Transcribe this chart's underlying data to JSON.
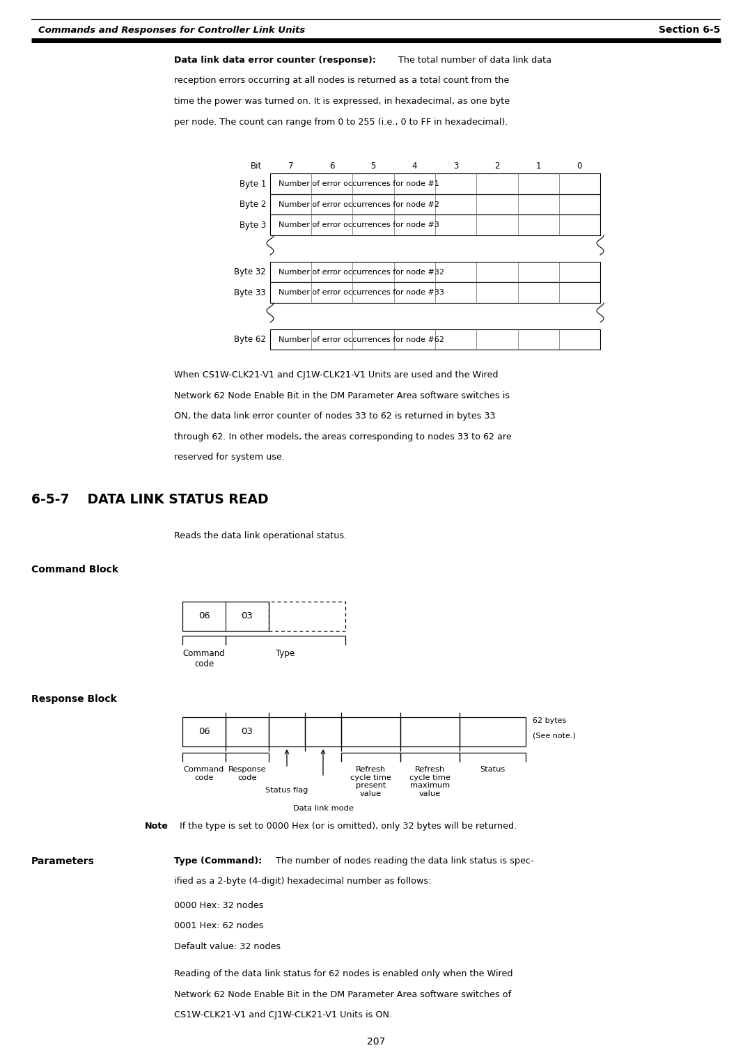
{
  "bg_color": "#ffffff",
  "page_number": "207",
  "header_italic": "Commands and Responses for Controller Link Units",
  "header_right": "Section 6-5",
  "section_title": "6-5-7    DATA LINK STATUS READ",
  "section_intro": "Reads the data link operational status.",
  "command_block_label": "Command Block",
  "response_block_label": "Response Block",
  "parameters_label": "Parameters",
  "note_bold": "Note",
  "note_rest": "  If the type is set to 0000 Hex (or is omitted), only 32 bytes will be returned.",
  "param_text_bold": "Type (Command):",
  "param_text_rest": " The number of nodes reading the data link status is spec-",
  "param_text_rest2": "ified as a 2-byte (4-digit) hexadecimal number as follows:",
  "param_items": [
    "0000 Hex: 32 nodes",
    "0001 Hex: 62 nodes",
    "Default value: 32 nodes"
  ],
  "param_note": "Reading of the data link status for 62 nodes is enabled only when the Wired\nNetwork 62 Node Enable Bit in the DM Parameter Area software switches of\nCS1W-CLK21-V1 and CJ1W-CLK21-V1 Units is ON.",
  "error_counter_bold": "Data link data error counter (response):",
  "error_counter_rest": " The total number of data link data",
  "error_counter_lines": [
    "reception errors occurring at all nodes is returned as a total count from the",
    "time the power was turned on. It is expressed, in hexadecimal, as one byte",
    "per node. The count can range from 0 to 255 (i.e., 0 to FF in hexadecimal)."
  ],
  "when_lines": [
    "When CS1W-CLK21-V1 and CJ1W-CLK21-V1 Units are used and the Wired",
    "Network 62 Node Enable Bit in the DM Parameter Area software switches is",
    "ON, the data link error counter of nodes 33 to 62 is returned in bytes 33",
    "through 62. In other models, the areas corresponding to nodes 33 to 62 are",
    "reserved for system use."
  ],
  "bit_labels": [
    "7",
    "6",
    "5",
    "4",
    "3",
    "2",
    "1",
    "0"
  ],
  "byte_rows_top": [
    [
      "Byte 1",
      "Number of error occurrences for node #1"
    ],
    [
      "Byte 2",
      "Number of error occurrences for node #2"
    ],
    [
      "Byte 3",
      "Number of error occurrences for node #3"
    ]
  ],
  "byte_rows_mid": [
    [
      "Byte 32",
      "Number of error occurrences for node #32"
    ],
    [
      "Byte 33",
      "Number of error occurrences for node #33"
    ]
  ],
  "byte_rows_bot": [
    [
      "Byte 62",
      "Number of error occurrences for node #62"
    ]
  ]
}
